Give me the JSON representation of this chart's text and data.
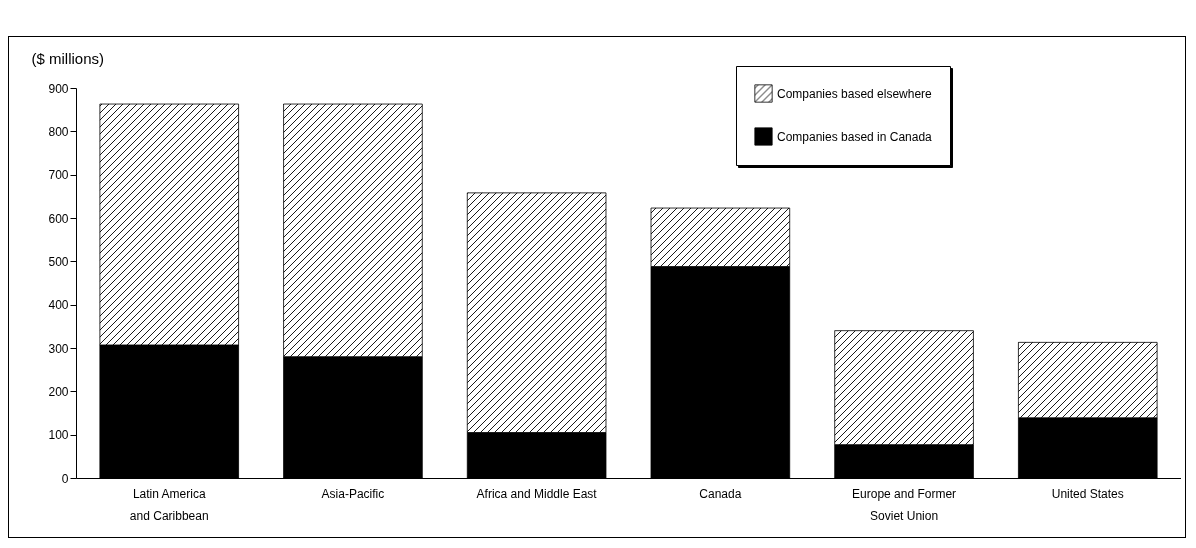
{
  "chart_data": {
    "type": "bar",
    "stacked": true,
    "ylabel": "($ millions)",
    "categories": [
      "Latin America and Caribbean",
      "Asia-Pacific",
      "Africa and Middle East",
      "Canada",
      "Europe and Former Soviet Union",
      "United States"
    ],
    "series": [
      {
        "name": "Companies based in Canada",
        "color": "#000000",
        "values": [
          307,
          280,
          105,
          488,
          77,
          139
        ]
      },
      {
        "name": "Companies based elsewhere",
        "color": "#ffffff",
        "values": [
          556,
          583,
          553,
          135,
          263,
          174
        ]
      }
    ],
    "ylim": [
      0,
      900
    ],
    "yticks": [
      0,
      100,
      200,
      300,
      400,
      500,
      600,
      700,
      800,
      900
    ],
    "grid": false,
    "legend": "top right"
  }
}
